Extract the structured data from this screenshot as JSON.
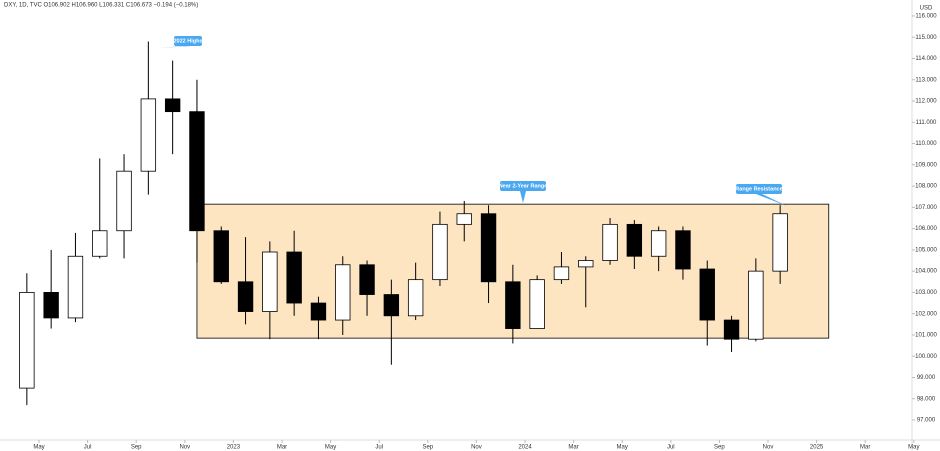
{
  "chart_data": {
    "type": "candlestick",
    "header": "DXY, 1D, TVC O106.902 H106.960 L106.331 C106.673 −0.194 (−0.18%)",
    "currency": "USD",
    "x": [
      "2022-04",
      "2022-05",
      "2022-06",
      "2022-07",
      "2022-08",
      "2022-09",
      "2022-10",
      "2022-11",
      "2022-12",
      "2023-01",
      "2023-02",
      "2023-03",
      "2023-04",
      "2023-05",
      "2023-06",
      "2023-07",
      "2023-08",
      "2023-09",
      "2023-10",
      "2023-11",
      "2023-12",
      "2024-01",
      "2024-02",
      "2024-03",
      "2024-04",
      "2024-05",
      "2024-06",
      "2024-07",
      "2024-08",
      "2024-09",
      "2024-10",
      "2024-11"
    ],
    "open": [
      98.5,
      103.0,
      101.8,
      104.7,
      105.9,
      108.7,
      112.1,
      111.5,
      105.9,
      103.5,
      102.1,
      104.9,
      102.5,
      101.7,
      104.3,
      102.9,
      101.9,
      103.6,
      106.2,
      106.7,
      103.5,
      101.3,
      103.6,
      104.2,
      104.5,
      106.2,
      104.7,
      105.9,
      104.1,
      101.7,
      100.8,
      104.0
    ],
    "high": [
      103.9,
      105.0,
      105.8,
      109.3,
      109.5,
      114.8,
      113.9,
      113.0,
      106.1,
      105.6,
      105.4,
      105.9,
      102.8,
      104.7,
      104.5,
      103.6,
      104.4,
      106.8,
      107.3,
      107.1,
      104.3,
      103.8,
      104.9,
      104.7,
      106.5,
      106.4,
      106.1,
      106.1,
      104.5,
      101.9,
      104.6,
      107.1
    ],
    "low": [
      97.7,
      101.3,
      101.6,
      104.6,
      104.6,
      107.6,
      109.5,
      104.4,
      103.4,
      101.5,
      100.8,
      101.9,
      100.8,
      101.0,
      101.9,
      99.6,
      101.7,
      103.3,
      105.4,
      102.5,
      100.6,
      101.3,
      103.4,
      102.3,
      104.3,
      104.1,
      104.0,
      103.6,
      100.5,
      100.2,
      100.7,
      103.4
    ],
    "close": [
      103.0,
      101.8,
      104.7,
      105.9,
      108.7,
      112.1,
      111.5,
      105.9,
      103.5,
      102.1,
      104.9,
      102.5,
      101.7,
      104.3,
      102.9,
      101.9,
      103.6,
      106.2,
      106.7,
      103.5,
      101.3,
      103.6,
      104.2,
      104.5,
      106.2,
      104.7,
      105.9,
      104.1,
      101.7,
      100.8,
      104.0,
      106.7
    ],
    "xlim": [
      "2022-04",
      "2025-05"
    ],
    "xticks": [
      {
        "value": "2022-05",
        "label": "May"
      },
      {
        "value": "2022-07",
        "label": "Jul"
      },
      {
        "value": "2022-09",
        "label": "Sep"
      },
      {
        "value": "2022-11",
        "label": "Nov"
      },
      {
        "value": "2023-01",
        "label": "2023"
      },
      {
        "value": "2023-03",
        "label": "Mar"
      },
      {
        "value": "2023-05",
        "label": "May"
      },
      {
        "value": "2023-07",
        "label": "Jul"
      },
      {
        "value": "2023-09",
        "label": "Sep"
      },
      {
        "value": "2023-11",
        "label": "Nov"
      },
      {
        "value": "2024-01",
        "label": "2024"
      },
      {
        "value": "2024-03",
        "label": "Mar"
      },
      {
        "value": "2024-05",
        "label": "May"
      },
      {
        "value": "2024-07",
        "label": "Jul"
      },
      {
        "value": "2024-09",
        "label": "Sep"
      },
      {
        "value": "2024-11",
        "label": "Nov"
      },
      {
        "value": "2025-01",
        "label": "2025"
      },
      {
        "value": "2025-03",
        "label": "Mar"
      },
      {
        "value": "2025-05",
        "label": "May"
      }
    ],
    "ylim": [
      96.06,
      116.75
    ],
    "yticks": [
      {
        "value": 97,
        "label": "97.000"
      },
      {
        "value": 98,
        "label": "98.000"
      },
      {
        "value": 99,
        "label": "99.000"
      },
      {
        "value": 100,
        "label": "100.000"
      },
      {
        "value": 101,
        "label": "101.000"
      },
      {
        "value": 102,
        "label": "102.000"
      },
      {
        "value": 103,
        "label": "103.000"
      },
      {
        "value": 104,
        "label": "104.000"
      },
      {
        "value": 105,
        "label": "105.000"
      },
      {
        "value": 106,
        "label": "106.000"
      },
      {
        "value": 107,
        "label": "107.000"
      },
      {
        "value": 108,
        "label": "108.000"
      },
      {
        "value": 109,
        "label": "109.000"
      },
      {
        "value": 110,
        "label": "110.000"
      },
      {
        "value": 111,
        "label": "111.000"
      },
      {
        "value": 112,
        "label": "112.000"
      },
      {
        "value": 113,
        "label": "113.000"
      },
      {
        "value": 114,
        "label": "114.000"
      },
      {
        "value": 115,
        "label": "115.000"
      },
      {
        "value": 116,
        "label": "116.000"
      }
    ],
    "range_box": {
      "x0": "2022-11",
      "x1": "2025-01",
      "y0": 100.85,
      "y1": 107.15,
      "color": "#fde5c2"
    },
    "annotations": [
      "2022 Highs",
      "Near 2-Year Range",
      "Range Resistance"
    ],
    "annotation_color": "#4aa8f0"
  }
}
